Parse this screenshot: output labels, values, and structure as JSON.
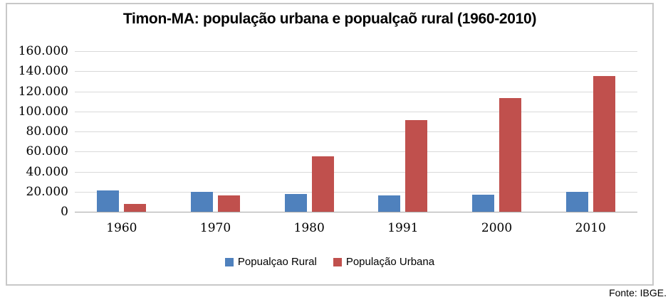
{
  "chart_data": {
    "type": "bar",
    "title": "Timon-MA: população urbana e popualçaõ rural (1960-2010)",
    "source": "Fonte: IBGE.",
    "categories": [
      "1960",
      "1970",
      "1980",
      "1991",
      "2000",
      "2010"
    ],
    "series": [
      {
        "key": "rural",
        "name": "Popualçao Rural",
        "color": "#4F81BD",
        "values": [
          21000,
          20000,
          18000,
          16000,
          17000,
          20000
        ]
      },
      {
        "key": "urbana",
        "name": "População Urbana",
        "color": "#C0504D",
        "values": [
          8000,
          16000,
          55000,
          91000,
          113000,
          135000
        ]
      }
    ],
    "xlabel": "",
    "ylabel": "",
    "ylim": [
      0,
      160000
    ],
    "ytick_step": 20000,
    "ytick_labels": [
      "0",
      "20.000",
      "40.000",
      "60.000",
      "80.000",
      "100.000",
      "120.000",
      "140.000",
      "160.000"
    ],
    "grid": true,
    "legend_position": "bottom",
    "style_colors": {
      "gridline": "#D9D9D9",
      "axis_line": "#A6A6A6",
      "frame_border": "#C8C8C8",
      "background": "#FFFFFF"
    }
  }
}
